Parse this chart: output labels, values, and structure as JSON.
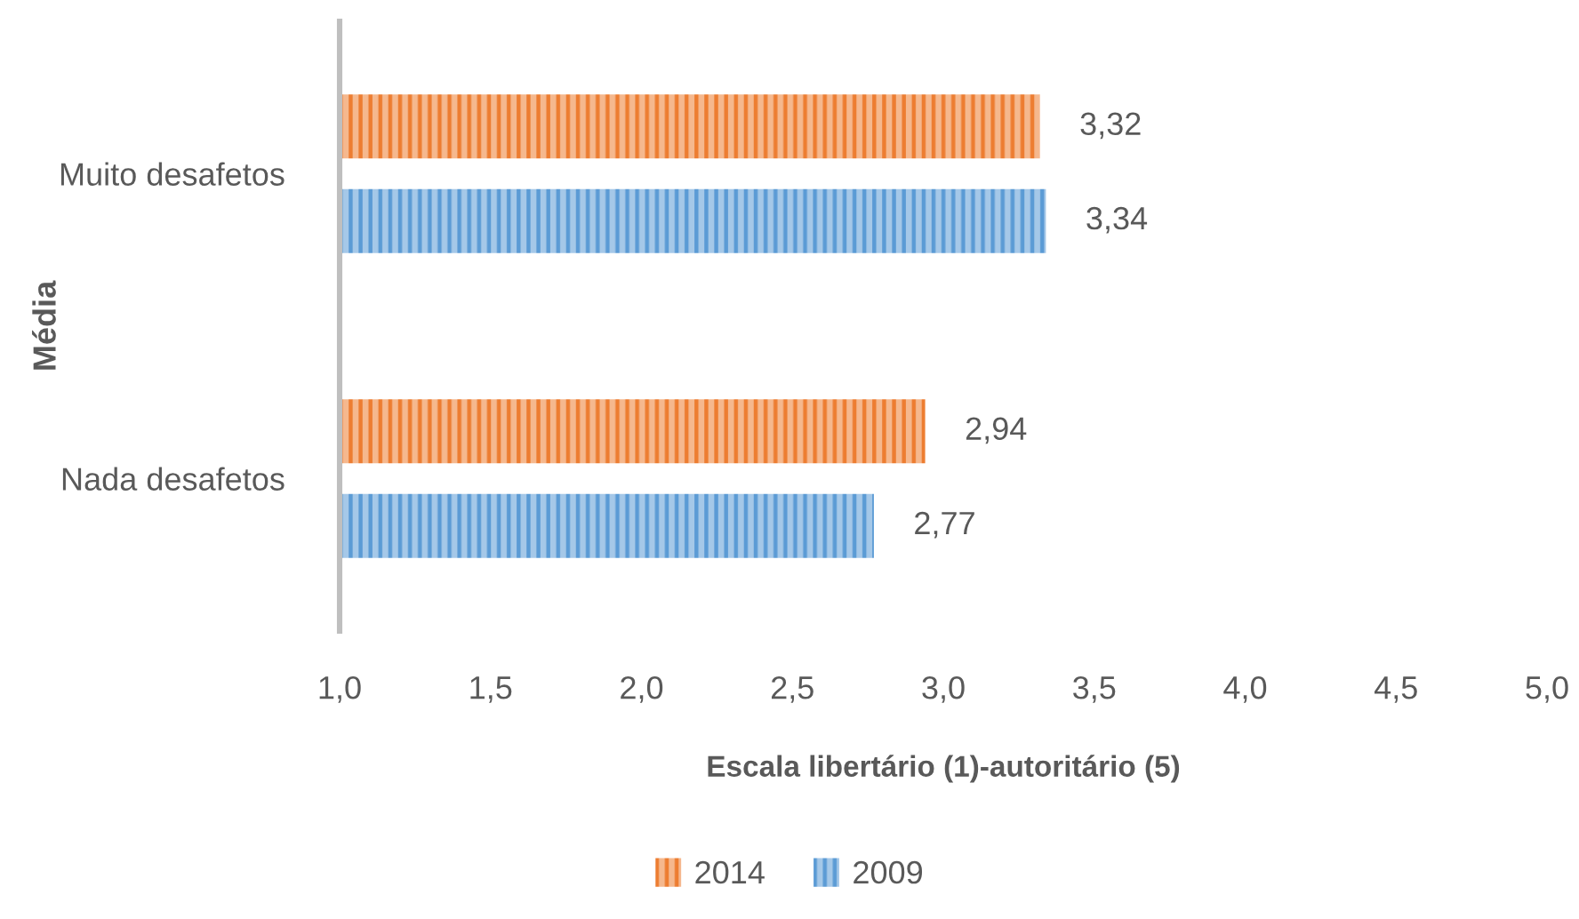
{
  "chart_data": {
    "type": "bar",
    "orientation": "horizontal",
    "categories": [
      "Muito desafetos",
      "Nada desafetos"
    ],
    "series": [
      {
        "name": "2014",
        "color": "#ed7d31",
        "values": [
          3.32,
          2.94
        ],
        "value_labels": [
          "3,32",
          "2,94"
        ]
      },
      {
        "name": "2009",
        "color": "#5b9bd5",
        "values": [
          3.34,
          2.77
        ],
        "value_labels": [
          "3,34",
          "2,77"
        ]
      }
    ],
    "xlabel": "Escala libertário (1)-autoritário (5)",
    "ylabel": "Média",
    "xlim": [
      1,
      5
    ],
    "xticks": [
      {
        "value": 1,
        "label": "1,0"
      },
      {
        "value": 1.5,
        "label": "1,5"
      },
      {
        "value": 2,
        "label": "2,0"
      },
      {
        "value": 2.5,
        "label": "2,5"
      },
      {
        "value": 3,
        "label": "3,0"
      },
      {
        "value": 3.5,
        "label": "3,5"
      },
      {
        "value": 4,
        "label": "4,0"
      },
      {
        "value": 4.5,
        "label": "4,5"
      },
      {
        "value": 5,
        "label": "5,0"
      }
    ],
    "grid": false,
    "legend": "bottom"
  }
}
